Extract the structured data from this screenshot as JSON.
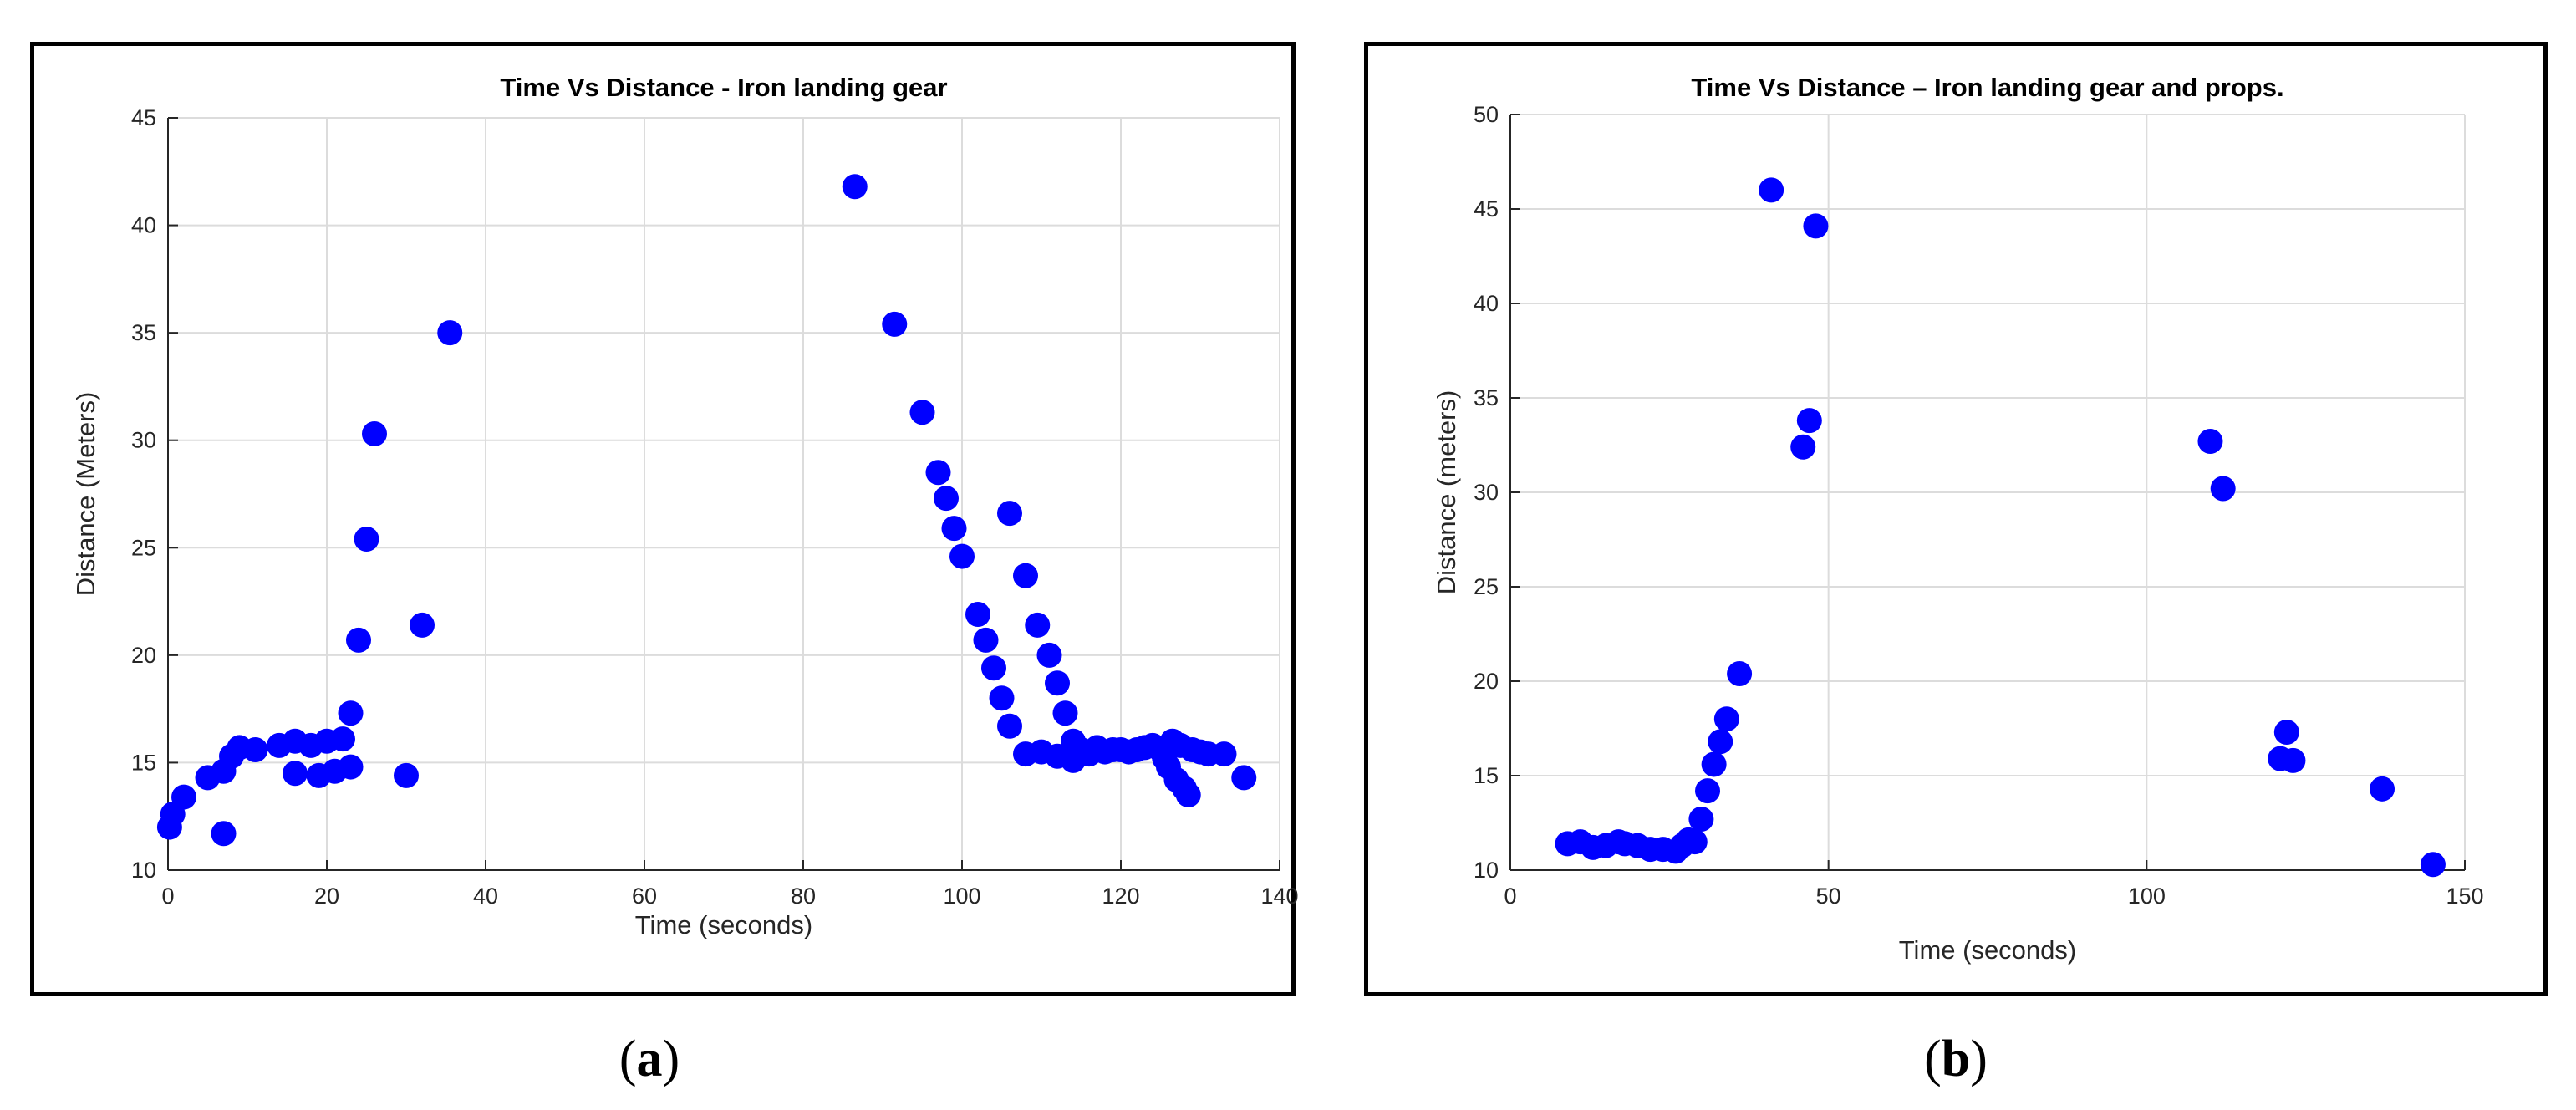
{
  "colors": {
    "marker": "#0000FF",
    "grid": "#DCDCDC",
    "axis": "#262626",
    "border": "#000000"
  },
  "chart_data": [
    {
      "type": "scatter",
      "title": "Time Vs Distance - Iron landing gear",
      "xlabel": "Time (seconds)",
      "ylabel": "Distance (Meters)",
      "xlim": [
        0,
        140
      ],
      "ylim": [
        10,
        45
      ],
      "xticks": [
        0,
        20,
        40,
        60,
        80,
        100,
        120,
        140
      ],
      "yticks": [
        10,
        15,
        20,
        25,
        30,
        35,
        40,
        45
      ],
      "grid": true,
      "marker_color": "#0000FF",
      "caption": "(a)",
      "points": [
        [
          0.2,
          12.0
        ],
        [
          0.6,
          12.6
        ],
        [
          2,
          13.4
        ],
        [
          5,
          14.3
        ],
        [
          7,
          11.7
        ],
        [
          7,
          14.6
        ],
        [
          8,
          15.3
        ],
        [
          9,
          15.7
        ],
        [
          11,
          15.6
        ],
        [
          14,
          15.8
        ],
        [
          16,
          16.0
        ],
        [
          16,
          14.5
        ],
        [
          18,
          15.8
        ],
        [
          19,
          14.4
        ],
        [
          20,
          16.0
        ],
        [
          21,
          14.6
        ],
        [
          22,
          16.1
        ],
        [
          23,
          14.8
        ],
        [
          23,
          17.3
        ],
        [
          24,
          20.7
        ],
        [
          25,
          25.4
        ],
        [
          26,
          30.3
        ],
        [
          30,
          14.4
        ],
        [
          32,
          21.4
        ],
        [
          35.5,
          35.0
        ],
        [
          86.5,
          41.8
        ],
        [
          91.5,
          35.4
        ],
        [
          95,
          31.3
        ],
        [
          97,
          28.5
        ],
        [
          98,
          27.3
        ],
        [
          99,
          25.9
        ],
        [
          100,
          24.6
        ],
        [
          102,
          21.9
        ],
        [
          103,
          20.7
        ],
        [
          104,
          19.4
        ],
        [
          105,
          18.0
        ],
        [
          106,
          16.7
        ],
        [
          106,
          26.6
        ],
        [
          108,
          23.7
        ],
        [
          108,
          15.4
        ],
        [
          109.5,
          21.4
        ],
        [
          110,
          15.5
        ],
        [
          111,
          20.0
        ],
        [
          112,
          18.7
        ],
        [
          112,
          15.3
        ],
        [
          113,
          17.3
        ],
        [
          114,
          15.1
        ],
        [
          114,
          16.0
        ],
        [
          115,
          15.6
        ],
        [
          116,
          15.4
        ],
        [
          117,
          15.7
        ],
        [
          118,
          15.5
        ],
        [
          119,
          15.6
        ],
        [
          120,
          15.6
        ],
        [
          121,
          15.5
        ],
        [
          122,
          15.6
        ],
        [
          123,
          15.7
        ],
        [
          124,
          15.8
        ],
        [
          125,
          15.6
        ],
        [
          125.5,
          15.2
        ],
        [
          126,
          14.8
        ],
        [
          126.5,
          16.0
        ],
        [
          127,
          14.2
        ],
        [
          127.5,
          15.8
        ],
        [
          128,
          13.8
        ],
        [
          128.5,
          13.5
        ],
        [
          129,
          15.6
        ],
        [
          130,
          15.5
        ],
        [
          131,
          15.4
        ],
        [
          133,
          15.4
        ],
        [
          135.5,
          14.3
        ]
      ]
    },
    {
      "type": "scatter",
      "title": "Time Vs Distance – Iron landing gear and props.",
      "xlabel": "Time (seconds)",
      "ylabel": "Distance (meters)",
      "xlim": [
        0,
        150
      ],
      "ylim": [
        10,
        50
      ],
      "xticks": [
        0,
        50,
        100,
        150
      ],
      "yticks": [
        10,
        15,
        20,
        25,
        30,
        35,
        40,
        45,
        50
      ],
      "grid": true,
      "marker_color": "#0000FF",
      "caption": "(b)",
      "points": [
        [
          9,
          11.4
        ],
        [
          11,
          11.5
        ],
        [
          13,
          11.2
        ],
        [
          15,
          11.3
        ],
        [
          17,
          11.5
        ],
        [
          18,
          11.4
        ],
        [
          20,
          11.3
        ],
        [
          22,
          11.1
        ],
        [
          24,
          11.1
        ],
        [
          26,
          11.0
        ],
        [
          27,
          11.3
        ],
        [
          28,
          11.6
        ],
        [
          29,
          11.5
        ],
        [
          30,
          12.7
        ],
        [
          31,
          14.2
        ],
        [
          32,
          15.6
        ],
        [
          33,
          16.8
        ],
        [
          34,
          18.0
        ],
        [
          36,
          20.4
        ],
        [
          41,
          46.0
        ],
        [
          46,
          32.4
        ],
        [
          47,
          33.8
        ],
        [
          48,
          44.1
        ],
        [
          110,
          32.7
        ],
        [
          112,
          30.2
        ],
        [
          121,
          15.9
        ],
        [
          122,
          17.3
        ],
        [
          123,
          15.8
        ],
        [
          137,
          14.3
        ],
        [
          145,
          10.3
        ]
      ]
    }
  ]
}
